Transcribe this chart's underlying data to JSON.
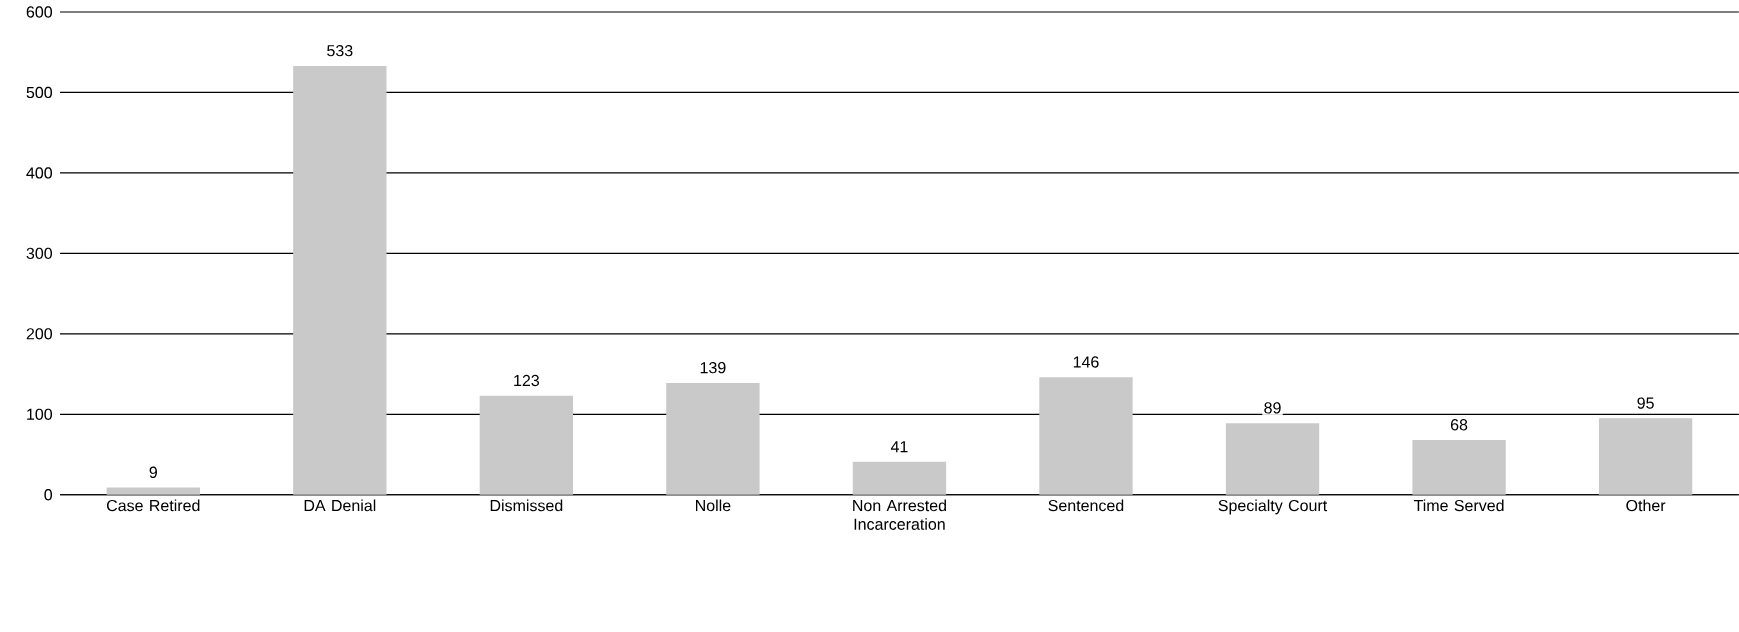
{
  "chart_data": {
    "type": "bar",
    "categories": [
      "Case Retired",
      "DA Denial",
      "Dismissed",
      "Nolle",
      "Non Arrested Incarceration",
      "Sentenced",
      "Specialty Court",
      "Time Served",
      "Other"
    ],
    "values": [
      9,
      533,
      123,
      139,
      41,
      146,
      89,
      68,
      95
    ],
    "color": "#c9c9c9",
    "ylim": [
      0,
      600
    ],
    "yticks": [
      0,
      100,
      200,
      300,
      400,
      500,
      600
    ],
    "grid": "y",
    "data_labels": true
  }
}
